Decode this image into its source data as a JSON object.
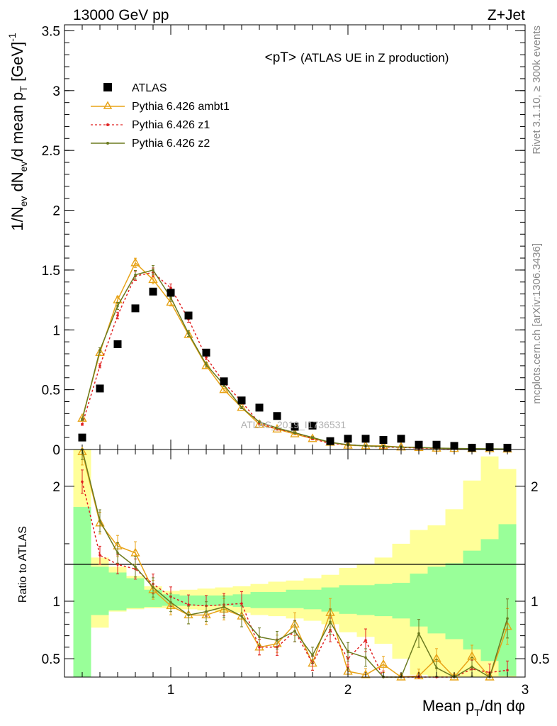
{
  "header": {
    "left": "13000 GeV pp",
    "right": "Z+Jet"
  },
  "side_labels": {
    "top": "Rivet 3.1.10, ≥ 300k events",
    "bottom": "mcplots.cern.ch [arXiv:1306.3436]"
  },
  "chart_data": [
    {
      "type": "line",
      "title": "<pT>",
      "subtitle": "(ATLAS UE in Z production)",
      "ylabel": "1/N_ev dN_ev/d mean p_T [GeV]^-1",
      "xlabel": "Mean p_T/dη dφ",
      "watermark": "ATLAS_2019_I1736531",
      "xlim": [
        0.4,
        3.0
      ],
      "ylim": [
        0,
        3.55
      ],
      "x_ticks": [
        1,
        2,
        3
      ],
      "y_ticks": [
        0,
        0.5,
        1,
        1.5,
        2,
        2.5,
        3,
        3.5
      ],
      "y_tick_labels": [
        "0",
        "0.5",
        "1",
        "1.5",
        "2",
        "2.5",
        "3",
        "3.5"
      ],
      "grid": false,
      "legend": "top-left",
      "x": [
        0.5,
        0.6,
        0.7,
        0.8,
        0.9,
        1.0,
        1.1,
        1.2,
        1.3,
        1.4,
        1.5,
        1.6,
        1.7,
        1.8,
        1.9,
        2.0,
        2.1,
        2.2,
        2.3,
        2.4,
        2.5,
        2.6,
        2.7,
        2.8,
        2.9
      ],
      "series": [
        {
          "name": "ATLAS",
          "color": "#000000",
          "marker": "square",
          "values": [
            0.1,
            0.51,
            0.88,
            1.18,
            1.32,
            1.31,
            1.12,
            0.81,
            0.57,
            0.41,
            0.35,
            0.28,
            0.19,
            0.2,
            0.07,
            0.09,
            0.09,
            0.08,
            0.09,
            0.04,
            0.04,
            0.03,
            0.015,
            0.02,
            0.015
          ]
        },
        {
          "name": "Pythia 6.426 ambt1",
          "color": "#e8a317",
          "marker": "triangle",
          "values": [
            0.26,
            0.81,
            1.25,
            1.56,
            1.42,
            1.23,
            0.96,
            0.7,
            0.5,
            0.35,
            0.21,
            0.17,
            0.13,
            0.09,
            0.06,
            0.035,
            0.03,
            0.03,
            0.02,
            0.015,
            0.01,
            0.008,
            0.006,
            0.005,
            0.003
          ]
        },
        {
          "name": "Pythia 6.426 z1",
          "color": "#e02020",
          "marker": "dot",
          "dashed": true,
          "values": [
            0.21,
            0.7,
            1.12,
            1.45,
            1.48,
            1.35,
            1.09,
            0.77,
            0.56,
            0.4,
            0.22,
            0.17,
            0.14,
            0.09,
            0.05,
            0.04,
            0.03,
            0.02,
            0.018,
            0.012,
            0.01,
            0.007,
            0.005,
            0.003,
            0.002
          ]
        },
        {
          "name": "Pythia 6.426 z2",
          "color": "#6b7a1f",
          "marker": "dot",
          "values": [
            0.25,
            0.83,
            1.2,
            1.46,
            1.5,
            1.27,
            0.97,
            0.71,
            0.54,
            0.35,
            0.23,
            0.18,
            0.14,
            0.1,
            0.06,
            0.04,
            0.03,
            0.025,
            0.02,
            0.018,
            0.012,
            0.009,
            0.007,
            0.006,
            0.005
          ]
        }
      ]
    },
    {
      "type": "line",
      "ylabel": "Ratio to ATLAS",
      "xlim": [
        0.4,
        3.0
      ],
      "ylim": [
        0.34,
        2.32
      ],
      "x_ticks": [
        1,
        2,
        3
      ],
      "y_ticks": [
        0.5,
        1,
        2
      ],
      "y_tick_labels": [
        "0.5",
        "1",
        "2"
      ],
      "reference_line": 1,
      "x": [
        0.5,
        0.6,
        0.7,
        0.8,
        0.9,
        1.0,
        1.1,
        1.2,
        1.3,
        1.4,
        1.5,
        1.6,
        1.7,
        1.8,
        1.9,
        2.0,
        2.1,
        2.2,
        2.3,
        2.4,
        2.5,
        2.6,
        2.7,
        2.8,
        2.9
      ],
      "bands": {
        "inner_color": "#99ff99",
        "outer_color": "#ffff99",
        "inner_upper": [
          1.82,
          1.3,
          1.25,
          1.2,
          1.1,
          1.06,
          1.05,
          1.05,
          1.05,
          1.06,
          1.08,
          1.08,
          1.1,
          1.1,
          1.12,
          1.14,
          1.14,
          1.15,
          1.16,
          1.24,
          1.3,
          1.33,
          1.44,
          1.54,
          1.67
        ],
        "inner_lower": [
          0.3,
          0.88,
          0.92,
          0.94,
          0.95,
          0.96,
          0.96,
          0.96,
          0.96,
          0.95,
          0.94,
          0.94,
          0.94,
          0.93,
          0.91,
          0.89,
          0.88,
          0.87,
          0.85,
          0.78,
          0.72,
          0.67,
          0.58,
          0.48,
          0.35
        ],
        "outer_upper": [
          2.35,
          1.38,
          1.3,
          1.22,
          1.13,
          1.09,
          1.1,
          1.11,
          1.12,
          1.13,
          1.15,
          1.17,
          1.18,
          1.2,
          1.23,
          1.29,
          1.32,
          1.38,
          1.5,
          1.62,
          1.66,
          1.8,
          2.05,
          2.26,
          2.15
        ],
        "outer_lower": [
          0.3,
          0.77,
          0.91,
          0.93,
          0.94,
          0.94,
          0.93,
          0.92,
          0.91,
          0.9,
          0.88,
          0.87,
          0.85,
          0.83,
          0.8,
          0.73,
          0.69,
          0.63,
          0.5,
          0.36,
          0.34,
          0.34,
          0.34,
          0.34,
          0.34
        ]
      },
      "series": [
        {
          "name": "Pythia 6.426 ambt1",
          "color": "#e8a317",
          "marker": "triangle",
          "values": [
            2.3,
            1.68,
            1.48,
            1.42,
            1.1,
            0.96,
            0.88,
            0.88,
            0.93,
            0.87,
            0.6,
            0.63,
            0.8,
            0.46,
            0.9,
            0.39,
            0.36,
            0.45,
            0.22,
            0.35,
            0.5,
            0.25,
            0.52,
            0.1,
            0.78
          ]
        },
        {
          "name": "Pythia 6.426 z1",
          "color": "#e02020",
          "marker": "dot",
          "dashed": true,
          "values": [
            2.04,
            1.4,
            1.32,
            1.28,
            1.15,
            1.04,
            0.97,
            0.96,
            0.97,
            0.98,
            0.6,
            0.6,
            0.74,
            0.46,
            0.75,
            0.5,
            0.66,
            0.34,
            0.3,
            0.3,
            0.28,
            0.25,
            0.41,
            0.38,
            0.4
          ]
        },
        {
          "name": "Pythia 6.426 z2",
          "color": "#6b7a1f",
          "marker": "dot",
          "values": [
            2.35,
            1.7,
            1.42,
            1.3,
            1.12,
            0.99,
            0.88,
            0.91,
            0.95,
            0.87,
            0.69,
            0.66,
            0.74,
            0.53,
            0.82,
            0.56,
            0.51,
            0.3,
            0.27,
            0.72,
            0.42,
            0.3,
            0.43,
            0.3,
            0.85
          ]
        }
      ]
    }
  ]
}
